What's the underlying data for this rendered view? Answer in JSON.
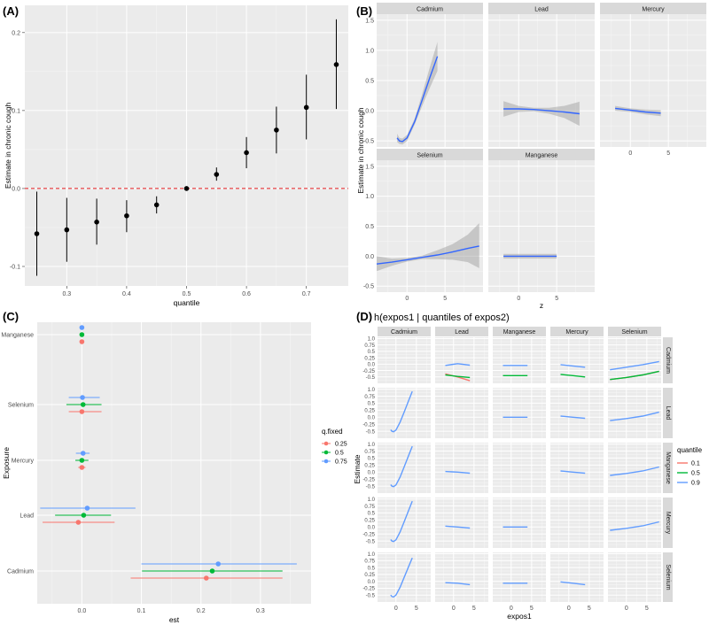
{
  "chart_data": [
    {
      "panel": "(A)",
      "type": "scatter",
      "xlabel": "quantile",
      "ylabel": "Estimate in chronic cough",
      "xlim": [
        0.23,
        0.77
      ],
      "ylim": [
        -0.125,
        0.235
      ],
      "xticks": [
        0.3,
        0.4,
        0.5,
        0.6,
        0.7
      ],
      "yticks": [
        -0.1,
        0.0,
        0.1,
        0.2
      ],
      "reference_line": {
        "y": 0,
        "color": "#e41a1c",
        "style": "dashed"
      },
      "points": [
        {
          "x": 0.25,
          "y": -0.058,
          "lo": -0.112,
          "hi": -0.004
        },
        {
          "x": 0.3,
          "y": -0.053,
          "lo": -0.094,
          "hi": -0.012
        },
        {
          "x": 0.35,
          "y": -0.043,
          "lo": -0.072,
          "hi": -0.013
        },
        {
          "x": 0.4,
          "y": -0.035,
          "lo": -0.056,
          "hi": -0.015
        },
        {
          "x": 0.45,
          "y": -0.021,
          "lo": -0.032,
          "hi": -0.01
        },
        {
          "x": 0.5,
          "y": 0.0,
          "lo": 0.0,
          "hi": 0.0
        },
        {
          "x": 0.55,
          "y": 0.018,
          "lo": 0.01,
          "hi": 0.027
        },
        {
          "x": 0.6,
          "y": 0.046,
          "lo": 0.026,
          "hi": 0.066
        },
        {
          "x": 0.65,
          "y": 0.075,
          "lo": 0.045,
          "hi": 0.105
        },
        {
          "x": 0.7,
          "y": 0.104,
          "lo": 0.063,
          "hi": 0.146
        },
        {
          "x": 0.75,
          "y": 0.159,
          "lo": 0.102,
          "hi": 0.217
        }
      ]
    },
    {
      "panel": "(B)",
      "type": "line",
      "xlabel": "z",
      "ylabel": "Estimate in chronic cough",
      "xlim": [
        -4,
        10
      ],
      "ylim": [
        -0.6,
        1.6
      ],
      "xticks": [
        0,
        5
      ],
      "yticks": [
        -0.5,
        0.0,
        0.5,
        1.0,
        1.5
      ],
      "line_color": "#3366ff",
      "facets": [
        {
          "name": "Cadmium",
          "x": [
            -1.3,
            -1.0,
            -0.6,
            0.0,
            1.0,
            2.0,
            3.0,
            4.0
          ],
          "y": [
            -0.45,
            -0.5,
            -0.51,
            -0.45,
            -0.18,
            0.18,
            0.55,
            0.9
          ],
          "lo": [
            -0.52,
            -0.55,
            -0.56,
            -0.5,
            -0.23,
            0.08,
            0.38,
            0.66
          ],
          "hi": [
            -0.38,
            -0.45,
            -0.46,
            -0.4,
            -0.13,
            0.28,
            0.72,
            1.14
          ]
        },
        {
          "name": "Lead",
          "x": [
            -2,
            0,
            2,
            4,
            6,
            8
          ],
          "y": [
            0.03,
            0.03,
            0.02,
            0.0,
            -0.02,
            -0.05
          ],
          "lo": [
            -0.1,
            -0.02,
            -0.01,
            -0.05,
            -0.12,
            -0.25
          ],
          "hi": [
            0.16,
            0.08,
            0.05,
            0.05,
            0.08,
            0.15
          ]
        },
        {
          "name": "Mercury",
          "x": [
            -2,
            0,
            2,
            4
          ],
          "y": [
            0.04,
            0.01,
            -0.02,
            -0.04
          ],
          "lo": [
            0.0,
            -0.02,
            -0.06,
            -0.09
          ],
          "hi": [
            0.08,
            0.04,
            0.02,
            0.01
          ]
        },
        {
          "name": "Selenium",
          "x": [
            -4,
            -2,
            0,
            2,
            4,
            6,
            8,
            9.5
          ],
          "y": [
            -0.13,
            -0.1,
            -0.06,
            -0.02,
            0.02,
            0.07,
            0.13,
            0.17
          ],
          "lo": [
            -0.25,
            -0.16,
            -0.09,
            -0.05,
            -0.05,
            -0.06,
            -0.1,
            -0.2
          ],
          "hi": [
            0.0,
            -0.04,
            -0.03,
            0.01,
            0.1,
            0.2,
            0.36,
            0.55
          ]
        },
        {
          "name": "Manganese",
          "x": [
            -2,
            0,
            2,
            4,
            5
          ],
          "y": [
            0.0,
            0.0,
            0.0,
            0.0,
            0.0
          ],
          "lo": [
            -0.04,
            -0.04,
            -0.04,
            -0.04,
            -0.04
          ],
          "hi": [
            0.04,
            0.04,
            0.04,
            0.04,
            0.04
          ]
        }
      ]
    },
    {
      "panel": "(C)",
      "type": "scatter",
      "xlabel": "est",
      "ylabel": "Exposure",
      "xlim": [
        -0.075,
        0.385
      ],
      "xticks": [
        0.0,
        0.1,
        0.2,
        0.3
      ],
      "categories": [
        "Manganese",
        "Selenium",
        "Mercury",
        "Lead",
        "Cadmium"
      ],
      "legend": {
        "title": "q.fixed",
        "position": "right"
      },
      "series": [
        {
          "name": "0.25",
          "color": "#f8766d",
          "est": [
            0.0,
            0.0,
            0.0,
            -0.006,
            0.209
          ],
          "lo": [
            0.0,
            -0.022,
            -0.006,
            -0.066,
            0.082
          ],
          "hi": [
            0.0,
            0.033,
            0.006,
            0.055,
            0.337
          ]
        },
        {
          "name": "0.5",
          "color": "#00ba38",
          "est": [
            0.0,
            0.002,
            0.0,
            0.003,
            0.219
          ],
          "lo": [
            0.0,
            -0.026,
            -0.011,
            -0.045,
            0.101
          ],
          "hi": [
            0.0,
            0.033,
            0.011,
            0.049,
            0.337
          ]
        },
        {
          "name": "0.75",
          "color": "#619cff",
          "est": [
            0.0,
            0.001,
            0.002,
            0.009,
            0.229
          ],
          "lo": [
            0.0,
            -0.022,
            -0.01,
            -0.07,
            0.1
          ],
          "hi": [
            0.0,
            0.03,
            0.013,
            0.09,
            0.361
          ]
        }
      ]
    },
    {
      "panel": "(D)",
      "type": "line",
      "title": "h(expos1 | quantiles of expos2)",
      "xlabel": "expos1",
      "ylabel": "Estimate",
      "xlim": [
        -4.5,
        8.5
      ],
      "ylim": [
        -0.75,
        1.05
      ],
      "xticks": [
        0,
        5
      ],
      "yticks": [
        -0.5,
        -0.25,
        0.0,
        0.25,
        0.5,
        0.75,
        1.0
      ],
      "columns": [
        "Cadmium",
        "Lead",
        "Manganese",
        "Mercury",
        "Selenium"
      ],
      "rows": [
        "Cadmium",
        "Lead",
        "Manganese",
        "Mercury",
        "Selenium"
      ],
      "legend": {
        "title": "quantile",
        "position": "right",
        "items": [
          "0.1",
          "0.5",
          "0.9"
        ],
        "colors": [
          "#f8766d",
          "#00ba38",
          "#619cff"
        ]
      },
      "cells": [
        {
          "row": "Cadmium",
          "col": "Lead",
          "x": [
            -2,
            1,
            4
          ],
          "series": {
            "0.1": [
              -0.38,
              -0.5,
              -0.65
            ],
            "0.5": [
              -0.42,
              -0.48,
              -0.52
            ],
            "0.9": [
              -0.05,
              0.02,
              -0.04
            ]
          }
        },
        {
          "row": "Cadmium",
          "col": "Manganese",
          "x": [
            -2,
            1,
            4
          ],
          "series": {
            "0.5": [
              -0.45,
              -0.45,
              -0.45
            ],
            "0.9": [
              -0.05,
              -0.05,
              -0.05
            ]
          }
        },
        {
          "row": "Cadmium",
          "col": "Mercury",
          "x": [
            -2,
            1,
            4
          ],
          "series": {
            "0.5": [
              -0.4,
              -0.45,
              -0.5
            ],
            "0.9": [
              -0.02,
              -0.07,
              -0.12
            ]
          }
        },
        {
          "row": "Cadmium",
          "col": "Selenium",
          "x": [
            -4,
            0,
            4,
            8
          ],
          "series": {
            "0.1": [
              -0.6,
              -0.52,
              -0.42,
              -0.28
            ],
            "0.5": [
              -0.6,
              -0.52,
              -0.42,
              -0.28
            ],
            "0.9": [
              -0.22,
              -0.12,
              -0.02,
              0.1
            ]
          }
        },
        {
          "row": "Lead",
          "col": "Cadmium",
          "x": [
            -1.3,
            -1.0,
            -0.6,
            0.0,
            1.0,
            2.0,
            3.0,
            4.0
          ],
          "series": {
            "0.9": [
              -0.45,
              -0.5,
              -0.52,
              -0.46,
              -0.18,
              0.18,
              0.55,
              0.92
            ]
          }
        },
        {
          "row": "Lead",
          "col": "Manganese",
          "x": [
            -2,
            1,
            4
          ],
          "series": {
            "0.9": [
              0.0,
              0.0,
              0.0
            ]
          }
        },
        {
          "row": "Lead",
          "col": "Mercury",
          "x": [
            -2,
            1,
            4
          ],
          "series": {
            "0.9": [
              0.04,
              0.0,
              -0.04
            ]
          }
        },
        {
          "row": "Lead",
          "col": "Selenium",
          "x": [
            -4,
            0,
            4,
            8
          ],
          "series": {
            "0.9": [
              -0.12,
              -0.05,
              0.04,
              0.18
            ]
          }
        },
        {
          "row": "Manganese",
          "col": "Cadmium",
          "x": [
            -1.3,
            -1.0,
            -0.6,
            0.0,
            1.0,
            2.0,
            3.0,
            4.0
          ],
          "series": {
            "0.9": [
              -0.45,
              -0.5,
              -0.52,
              -0.46,
              -0.18,
              0.18,
              0.55,
              0.92
            ]
          }
        },
        {
          "row": "Manganese",
          "col": "Lead",
          "x": [
            -2,
            1,
            4
          ],
          "series": {
            "0.9": [
              0.02,
              0.0,
              -0.04
            ]
          }
        },
        {
          "row": "Manganese",
          "col": "Mercury",
          "x": [
            -2,
            1,
            4
          ],
          "series": {
            "0.9": [
              0.04,
              0.0,
              -0.04
            ]
          }
        },
        {
          "row": "Manganese",
          "col": "Selenium",
          "x": [
            -4,
            0,
            4,
            8
          ],
          "series": {
            "0.9": [
              -0.12,
              -0.05,
              0.04,
              0.18
            ]
          }
        },
        {
          "row": "Mercury",
          "col": "Cadmium",
          "x": [
            -1.3,
            -1.0,
            -0.6,
            0.0,
            1.0,
            2.0,
            3.0,
            4.0
          ],
          "series": {
            "0.9": [
              -0.45,
              -0.5,
              -0.52,
              -0.46,
              -0.18,
              0.18,
              0.55,
              0.92
            ]
          }
        },
        {
          "row": "Mercury",
          "col": "Lead",
          "x": [
            -2,
            1,
            4
          ],
          "series": {
            "0.9": [
              0.03,
              0.0,
              -0.04
            ]
          }
        },
        {
          "row": "Mercury",
          "col": "Manganese",
          "x": [
            -2,
            1,
            4
          ],
          "series": {
            "0.9": [
              0.0,
              0.0,
              0.0
            ]
          }
        },
        {
          "row": "Mercury",
          "col": "Selenium",
          "x": [
            -4,
            0,
            4,
            8
          ],
          "series": {
            "0.9": [
              -0.12,
              -0.05,
              0.04,
              0.18
            ]
          }
        },
        {
          "row": "Selenium",
          "col": "Cadmium",
          "x": [
            -1.3,
            -1.0,
            -0.6,
            0.0,
            1.0,
            2.0,
            3.0,
            4.0
          ],
          "series": {
            "0.9": [
              -0.5,
              -0.55,
              -0.57,
              -0.5,
              -0.22,
              0.14,
              0.5,
              0.85
            ]
          }
        },
        {
          "row": "Selenium",
          "col": "Lead",
          "x": [
            -2,
            1,
            4
          ],
          "series": {
            "0.9": [
              -0.05,
              -0.07,
              -0.12
            ]
          }
        },
        {
          "row": "Selenium",
          "col": "Manganese",
          "x": [
            -2,
            1,
            4
          ],
          "series": {
            "0.9": [
              -0.07,
              -0.07,
              -0.07
            ]
          }
        },
        {
          "row": "Selenium",
          "col": "Mercury",
          "x": [
            -2,
            1,
            4
          ],
          "series": {
            "0.9": [
              -0.02,
              -0.07,
              -0.12
            ]
          }
        }
      ]
    }
  ]
}
